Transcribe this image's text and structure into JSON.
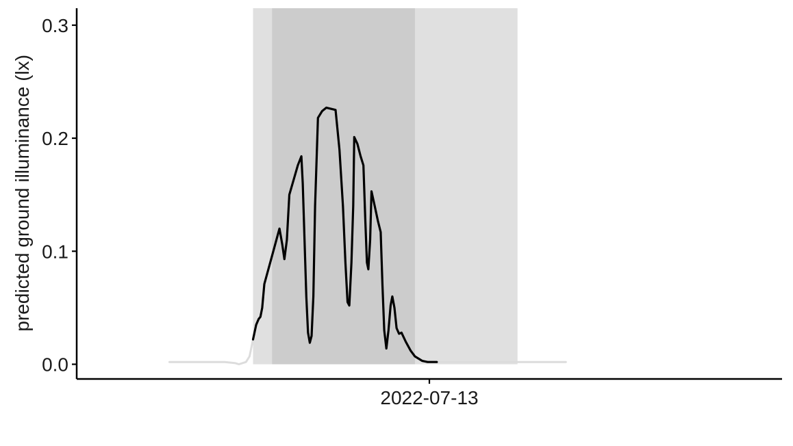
{
  "chart_data": {
    "type": "line",
    "title": "",
    "xlabel": "",
    "ylabel": "predicted ground illuminance (lx)",
    "ylim": [
      -0.013,
      0.315
    ],
    "xlim": [
      -0.5,
      1.5
    ],
    "x_ticks": [
      {
        "value": 0.5,
        "label": "2022-07-13"
      }
    ],
    "y_ticks": [
      {
        "value": 0.0,
        "label": "0.0"
      },
      {
        "value": 0.1,
        "label": "0.1"
      },
      {
        "value": 0.2,
        "label": "0.2"
      },
      {
        "value": 0.3,
        "label": "0.3"
      }
    ],
    "grid": false,
    "legend": "none",
    "bands": [
      {
        "name": "twilight",
        "x": [
          0.0,
          0.75
        ],
        "color": "#e0e0e0"
      },
      {
        "name": "night",
        "x": [
          0.054,
          0.459
        ],
        "color": "#cccccc"
      }
    ],
    "series": [
      {
        "color": "#000000",
        "points": [
          [
            0.0,
            0.022
          ],
          [
            0.009,
            0.035
          ],
          [
            0.016,
            0.04
          ],
          [
            0.021,
            0.042
          ],
          [
            0.026,
            0.05
          ],
          [
            0.032,
            0.071
          ],
          [
            0.054,
            0.096
          ],
          [
            0.075,
            0.12
          ],
          [
            0.083,
            0.106
          ],
          [
            0.089,
            0.093
          ],
          [
            0.096,
            0.11
          ],
          [
            0.103,
            0.15
          ],
          [
            0.115,
            0.163
          ],
          [
            0.127,
            0.176
          ],
          [
            0.132,
            0.18
          ],
          [
            0.137,
            0.184
          ],
          [
            0.141,
            0.16
          ],
          [
            0.146,
            0.11
          ],
          [
            0.151,
            0.06
          ],
          [
            0.156,
            0.028
          ],
          [
            0.161,
            0.019
          ],
          [
            0.166,
            0.025
          ],
          [
            0.171,
            0.06
          ],
          [
            0.176,
            0.14
          ],
          [
            0.184,
            0.218
          ],
          [
            0.196,
            0.224
          ],
          [
            0.208,
            0.227
          ],
          [
            0.221,
            0.226
          ],
          [
            0.234,
            0.225
          ],
          [
            0.245,
            0.19
          ],
          [
            0.255,
            0.14
          ],
          [
            0.262,
            0.09
          ],
          [
            0.268,
            0.055
          ],
          [
            0.273,
            0.052
          ],
          [
            0.279,
            0.09
          ],
          [
            0.284,
            0.14
          ],
          [
            0.287,
            0.201
          ],
          [
            0.296,
            0.195
          ],
          [
            0.305,
            0.184
          ],
          [
            0.313,
            0.176
          ],
          [
            0.318,
            0.13
          ],
          [
            0.323,
            0.09
          ],
          [
            0.327,
            0.084
          ],
          [
            0.332,
            0.11
          ],
          [
            0.336,
            0.153
          ],
          [
            0.345,
            0.14
          ],
          [
            0.354,
            0.127
          ],
          [
            0.362,
            0.117
          ],
          [
            0.367,
            0.07
          ],
          [
            0.372,
            0.03
          ],
          [
            0.378,
            0.014
          ],
          [
            0.384,
            0.03
          ],
          [
            0.39,
            0.052
          ],
          [
            0.395,
            0.06
          ],
          [
            0.401,
            0.05
          ],
          [
            0.407,
            0.032
          ],
          [
            0.414,
            0.027
          ],
          [
            0.421,
            0.028
          ],
          [
            0.433,
            0.02
          ],
          [
            0.447,
            0.012
          ],
          [
            0.459,
            0.007
          ],
          [
            0.48,
            0.003
          ],
          [
            0.495,
            0.002
          ],
          [
            0.516,
            0.002
          ],
          [
            0.521,
            0.002
          ]
        ]
      },
      {
        "color": "#dcdcdc",
        "points": [
          [
            -0.237,
            0.002
          ],
          [
            -0.2,
            0.002
          ],
          [
            -0.17,
            0.002
          ],
          [
            -0.14,
            0.002
          ],
          [
            -0.11,
            0.002
          ],
          [
            -0.08,
            0.002
          ],
          [
            -0.05,
            0.001
          ],
          [
            -0.04,
            0.0
          ],
          [
            -0.02,
            0.002
          ],
          [
            -0.01,
            0.007
          ],
          [
            0.0,
            0.022
          ]
        ]
      },
      {
        "color": "#dcdcdc",
        "points": [
          [
            0.521,
            0.002
          ],
          [
            0.58,
            0.002
          ],
          [
            0.64,
            0.002
          ],
          [
            0.7,
            0.002
          ],
          [
            0.76,
            0.002
          ],
          [
            0.82,
            0.002
          ],
          [
            0.887,
            0.002
          ]
        ]
      }
    ]
  }
}
